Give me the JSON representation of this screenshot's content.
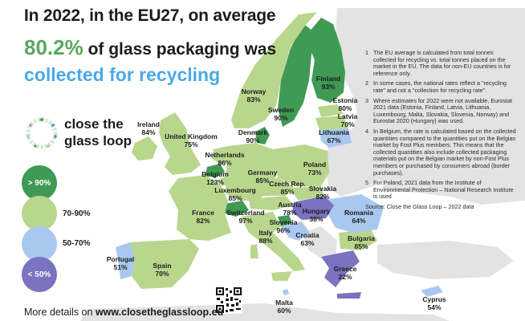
{
  "headline": {
    "line1": "In 2022, in the EU27, on average",
    "percent": "80.2%",
    "line2_rest": " of glass packaging was",
    "line3": "collected for recycling"
  },
  "logo": {
    "icon": "close-the-glass-loop-logo",
    "text_line1": "close the",
    "text_line2": "glass loop"
  },
  "legend": [
    {
      "label_in": "> 90%",
      "label": "",
      "color": "#3f9a55"
    },
    {
      "label_in": "",
      "label": "70-90%",
      "color": "#b9d68d"
    },
    {
      "label_in": "",
      "label": "50-70%",
      "color": "#a9c8ef"
    },
    {
      "label_in": "< 50%",
      "label": "",
      "color": "#7b72c0"
    }
  ],
  "countries": [
    {
      "name": "Finland",
      "value": "93%",
      "band": ">90"
    },
    {
      "name": "Norway",
      "value": "83%",
      "band": "70-90"
    },
    {
      "name": "Sweden",
      "value": "90%",
      "band": ">90"
    },
    {
      "name": "Estonia",
      "value": "80%",
      "band": "70-90"
    },
    {
      "name": "Latvia",
      "value": "70%",
      "band": "70-90"
    },
    {
      "name": "Lithuania",
      "value": "67%",
      "band": "50-70"
    },
    {
      "name": "Denmark",
      "value": "90%",
      "band": ">90"
    },
    {
      "name": "Ireland",
      "value": "84%",
      "band": "70-90"
    },
    {
      "name": "United Kingdom",
      "value": "75%",
      "band": "70-90"
    },
    {
      "name": "Netherlands",
      "value": "86%",
      "band": "70-90"
    },
    {
      "name": "Germany",
      "value": "85%",
      "band": "70-90"
    },
    {
      "name": "Poland",
      "value": "73%",
      "band": "70-90"
    },
    {
      "name": "Belgium",
      "value": "123%",
      "band": ">90"
    },
    {
      "name": "Luxembourg",
      "value": "85%",
      "band": "70-90"
    },
    {
      "name": "Czech Rep.",
      "value": "85%",
      "band": "70-90"
    },
    {
      "name": "Slovakia",
      "value": "82%",
      "band": "70-90"
    },
    {
      "name": "France",
      "value": "82%",
      "band": "70-90"
    },
    {
      "name": "Switzerland",
      "value": "97%",
      "band": ">90"
    },
    {
      "name": "Austria",
      "value": "78%",
      "band": "70-90"
    },
    {
      "name": "Hungary",
      "value": "38%",
      "band": "<50"
    },
    {
      "name": "Romania",
      "value": "64%",
      "band": "50-70"
    },
    {
      "name": "Italy",
      "value": "88%",
      "band": "70-90"
    },
    {
      "name": "Slovenia",
      "value": "96%",
      "band": ">90"
    },
    {
      "name": "Croatia",
      "value": "63%",
      "band": "50-70"
    },
    {
      "name": "Bulgaria",
      "value": "85%",
      "band": "70-90"
    },
    {
      "name": "Portugal",
      "value": "51%",
      "band": "50-70"
    },
    {
      "name": "Spain",
      "value": "70%",
      "band": "70-90"
    },
    {
      "name": "Greece",
      "value": "22%",
      "band": "<50"
    },
    {
      "name": "Malta",
      "value": "60%",
      "band": "50-70"
    },
    {
      "name": "Cyprus",
      "value": "54%",
      "band": "50-70"
    }
  ],
  "notes": [
    {
      "num": "1",
      "text": "The EU average is calculated from total tonnes collected for recycling vs. total tonnes placed on the market in the EU. The data for non-EU countries is for reference only."
    },
    {
      "num": "2",
      "text": "In some cases, the national rates reflect a \"recycling rate\" and not a \"collection for recycling rate\"."
    },
    {
      "num": "3",
      "text": "Where estimates for 2022 were not available, Eurostat 2021 data (Estonia, Finland, Latvia, Lithuania, Luxembourg, Malta, Slovakia, Slovenia, Norway) and Eurostat 2020 (Hungary) was used."
    },
    {
      "num": "4",
      "text": "In Belgium, the rate is calculated based on the collected quantities compared to the quantities put on the Belgian market by Fost Plus members. This means that the collected quantities also include collected packaging materials put on the Belgian market by non-Fost Plus members or purchased by consumers abroad (border purchases)."
    },
    {
      "num": "5",
      "text": "For Poland, 2021 data from the Institute of Environmental Protection – National Research Institute is used"
    }
  ],
  "source": "Source: Close the Glass Loop – 2022 data",
  "footer": {
    "prefix": "More details on ",
    "url": "www.closetheglassloop.eu"
  },
  "qr_icon": "qr-code-icon",
  "colors": {
    "band_gt90": "#3f9a55",
    "band_70_90": "#b9d68d",
    "band_50_70": "#a9c8ef",
    "band_lt50": "#7b72c0",
    "non_data": "#e3e3e3",
    "sea": "#ffffff",
    "headline_green": "#5aa85e",
    "headline_blue": "#4aa8e8"
  }
}
